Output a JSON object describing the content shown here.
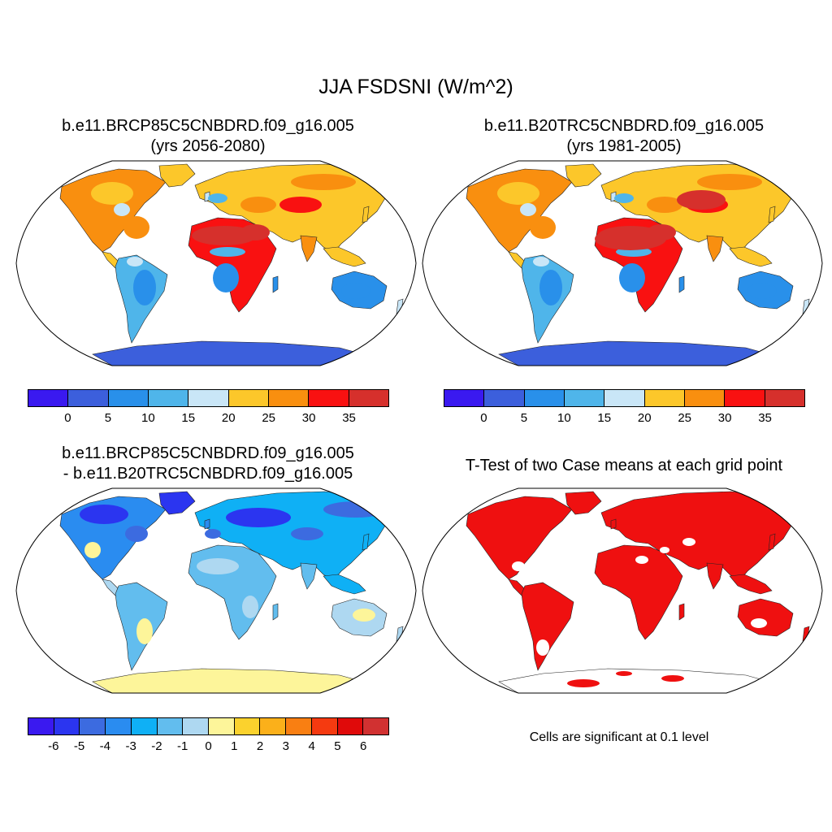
{
  "figure": {
    "title": "JJA FSDSNI (W/m^2)"
  },
  "panels": [
    {
      "id": "future",
      "title_line1": "b.e11.BRCP85C5CNBDRD.f09_g16.005",
      "title_line2": "(yrs 2056-2080)"
    },
    {
      "id": "historical",
      "title_line1": "b.e11.B20TRC5CNBDRD.f09_g16.005",
      "title_line2": "(yrs 1981-2005)"
    },
    {
      "id": "difference",
      "title_line1": "b.e11.BRCP85C5CNBDRD.f09_g16.005",
      "title_line2": "- b.e11.B20TRC5CNBDRD.f09_g16.005"
    },
    {
      "id": "ttest",
      "title_line1": "T-Test of two Case means at each grid point",
      "note": "Cells are significant at 0.1 level"
    }
  ],
  "colorbars": {
    "absolute": {
      "labels": [
        "0",
        "5",
        "10",
        "15",
        "20",
        "25",
        "30",
        "35"
      ],
      "colors": [
        "#3a19f0",
        "#3c5fdc",
        "#2990ea",
        "#4fb5ea",
        "#c9e6f7",
        "#fcc72a",
        "#f98f0f",
        "#f91111",
        "#d6302c"
      ]
    },
    "difference": {
      "labels": [
        "-6",
        "-5",
        "-4",
        "-3",
        "-2",
        "-1",
        "0",
        "1",
        "2",
        "3",
        "4",
        "5",
        "6"
      ],
      "colors": [
        "#3a19f0",
        "#2b35f0",
        "#3c6be0",
        "#2a8cf0",
        "#0fb0f5",
        "#62bdee",
        "#aed8f1",
        "#fdf59a",
        "#fbd22d",
        "#fbb01a",
        "#f97f12",
        "#f53a10",
        "#e00a0a",
        "#d13131"
      ]
    },
    "significance_color": "#ef1010"
  }
}
